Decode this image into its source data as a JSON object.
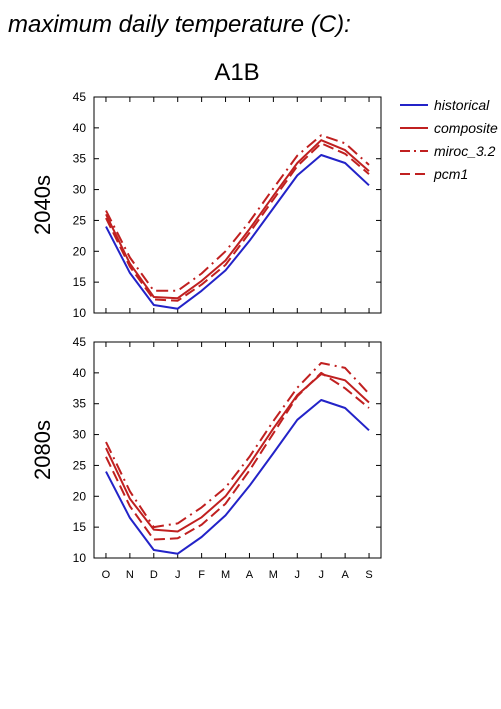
{
  "figure": {
    "title": "maximum daily temperature (C):",
    "scenario": "A1B"
  },
  "legend": [
    {
      "name": "historical",
      "color": "#2323c8",
      "dash": "solid"
    },
    {
      "name": "composite",
      "color": "#c02020",
      "dash": "solid"
    },
    {
      "name": "miroc_3.2",
      "color": "#c02020",
      "dash": "dashdot"
    },
    {
      "name": "pcm1",
      "color": "#c02020",
      "dash": "dashed"
    }
  ],
  "chart_data": [
    {
      "type": "line",
      "panel_label": "2040s",
      "categories": [
        "O",
        "N",
        "D",
        "J",
        "F",
        "M",
        "A",
        "M",
        "J",
        "J",
        "A",
        "S"
      ],
      "ylim": [
        10,
        45
      ],
      "yticks": [
        "10",
        "15",
        "20",
        "25",
        "30",
        "35",
        "40",
        "45"
      ],
      "series": [
        {
          "name": "historical",
          "values": [
            24.0,
            16.5,
            11.3,
            10.7,
            13.6,
            16.9,
            21.7,
            27.0,
            32.3,
            35.6,
            34.3,
            30.7
          ]
        },
        {
          "name": "composite",
          "values": [
            26.0,
            18.0,
            12.6,
            12.4,
            15.2,
            18.5,
            23.6,
            29.0,
            34.3,
            38.0,
            36.4,
            33.0
          ]
        },
        {
          "name": "miroc_3.2",
          "values": [
            26.6,
            19.0,
            13.6,
            13.6,
            16.4,
            20.0,
            24.8,
            30.2,
            35.5,
            38.8,
            37.5,
            34.0
          ]
        },
        {
          "name": "pcm1",
          "values": [
            25.4,
            17.5,
            12.2,
            12.0,
            14.6,
            17.8,
            23.0,
            28.4,
            33.8,
            37.5,
            35.8,
            32.5
          ]
        }
      ]
    },
    {
      "type": "line",
      "panel_label": "2080s",
      "categories": [
        "O",
        "N",
        "D",
        "J",
        "F",
        "M",
        "A",
        "M",
        "J",
        "J",
        "A",
        "S"
      ],
      "ylim": [
        10,
        45
      ],
      "yticks": [
        "10",
        "15",
        "20",
        "25",
        "30",
        "35",
        "40",
        "45"
      ],
      "series": [
        {
          "name": "historical",
          "values": [
            24.0,
            16.5,
            11.3,
            10.7,
            13.4,
            16.9,
            21.7,
            27.0,
            32.4,
            35.6,
            34.3,
            30.7
          ]
        },
        {
          "name": "composite",
          "values": [
            27.8,
            19.6,
            14.6,
            14.3,
            16.6,
            20.0,
            25.2,
            31.0,
            36.4,
            39.8,
            38.8,
            35.2
          ]
        },
        {
          "name": "miroc_3.2",
          "values": [
            28.8,
            20.8,
            15.0,
            15.6,
            18.2,
            21.4,
            26.4,
            32.2,
            37.6,
            41.6,
            40.8,
            36.6
          ]
        },
        {
          "name": "pcm1",
          "values": [
            26.4,
            18.4,
            13.0,
            13.2,
            15.4,
            18.8,
            24.2,
            30.2,
            36.2,
            40.0,
            37.5,
            34.3
          ]
        }
      ]
    }
  ]
}
